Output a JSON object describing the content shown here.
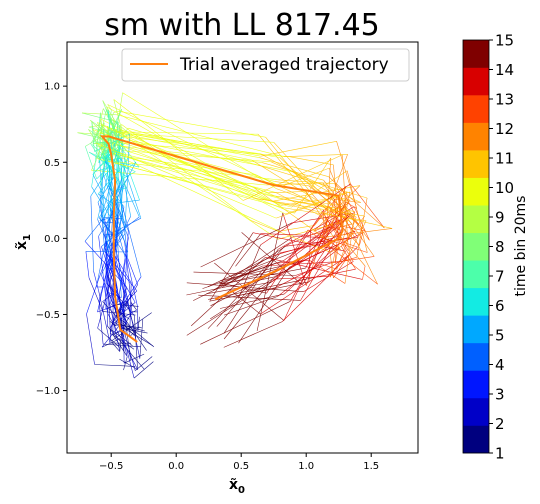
{
  "chart_data": {
    "type": "line",
    "title": "sm with LL 817.45",
    "xlabel": "x̃",
    "xlabel_sub": "0",
    "ylabel": "x̃",
    "ylabel_sub": "1",
    "xlim": [
      -0.84,
      1.86
    ],
    "ylim": [
      -1.41,
      1.29
    ],
    "xticks": [
      -0.5,
      0.0,
      0.5,
      1.0,
      1.5
    ],
    "xtick_labels": [
      "−0.5",
      "0.0",
      "0.5",
      "1.0",
      "1.5"
    ],
    "yticks": [
      -1.0,
      -0.5,
      0.0,
      0.5,
      1.0
    ],
    "ytick_labels": [
      "−1.0",
      "−0.5",
      "0.0",
      "0.5",
      "1.0"
    ],
    "legend": {
      "entries": [
        "Trial averaged trajectory"
      ],
      "placement": "top-right"
    },
    "mean_trajectory": {
      "name": "Trial averaged trajectory",
      "color": "#ff7f0e",
      "x": [
        -0.3,
        -0.43,
        -0.47,
        -0.48,
        -0.48,
        -0.47,
        -0.5,
        -0.52,
        -0.57,
        -0.52,
        0.75,
        1.25,
        1.28,
        1.25,
        0.8,
        0.3
      ],
      "y": [
        -0.68,
        -0.6,
        -0.38,
        -0.1,
        0.15,
        0.38,
        0.55,
        0.62,
        0.67,
        0.67,
        0.35,
        0.28,
        0.05,
        0.0,
        -0.2,
        -0.4
      ]
    },
    "trial_count": 40,
    "colorbar": {
      "label": "time bin 20ms",
      "min": 1,
      "max": 15,
      "ticks": [
        1,
        2,
        3,
        4,
        5,
        6,
        7,
        8,
        9,
        10,
        11,
        12,
        13,
        14,
        15
      ],
      "colormap": "jet",
      "colors": [
        "#00007f",
        "#0000c8",
        "#0016ff",
        "#0060ff",
        "#00a8ff",
        "#13ebe3",
        "#4cffaa",
        "#80ff77",
        "#b4ff43",
        "#ebff0c",
        "#ffc400",
        "#ff8300",
        "#ff4200",
        "#d80000",
        "#7f0000"
      ]
    }
  }
}
